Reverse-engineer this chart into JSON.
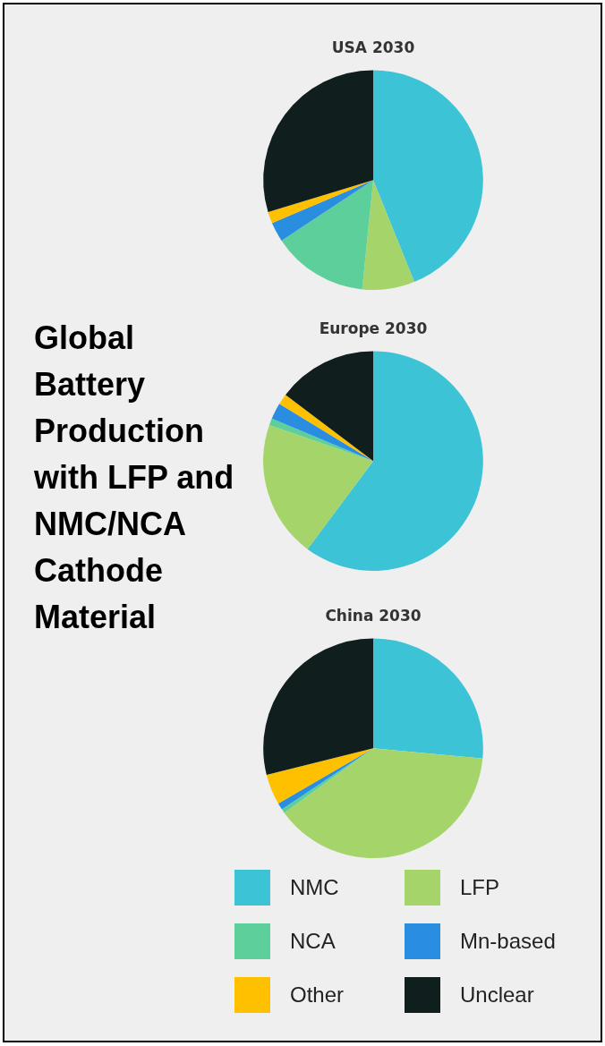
{
  "chart_data": [
    {
      "type": "other",
      "title": "Global Battery Production with LFP and NMC/NCA Cathode Material"
    },
    {
      "type": "pie",
      "title": "USA 2030",
      "categories": [
        "NMC",
        "LFP",
        "NCA",
        "Mn-based",
        "Other",
        "Unclear"
      ],
      "values": [
        43.9,
        7.7,
        14.1,
        2.9,
        1.7,
        29.7
      ],
      "colors": [
        "#3cc3d6",
        "#a5d46a",
        "#5ccf9a",
        "#2a8ee0",
        "#ffc000",
        "#101e1e"
      ],
      "legend": "bottom"
    },
    {
      "type": "pie",
      "title": "Europe 2030",
      "values": [
        60.2,
        20.1,
        1.0,
        2.4,
        1.6,
        14.7
      ],
      "colors": [
        "#3cc3d6",
        "#a5d46a",
        "#5ccf9a",
        "#2a8ee0",
        "#ffc000",
        "#101e1e"
      ]
    },
    {
      "type": "pie",
      "title": "China 2030",
      "values": [
        26.5,
        38.5,
        0.6,
        1.0,
        4.5,
        28.9
      ],
      "colors": [
        "#3cc3d6",
        "#a5d46a",
        "#5ccf9a",
        "#2a8ee0",
        "#ffc000",
        "#101e1e"
      ]
    }
  ]
}
